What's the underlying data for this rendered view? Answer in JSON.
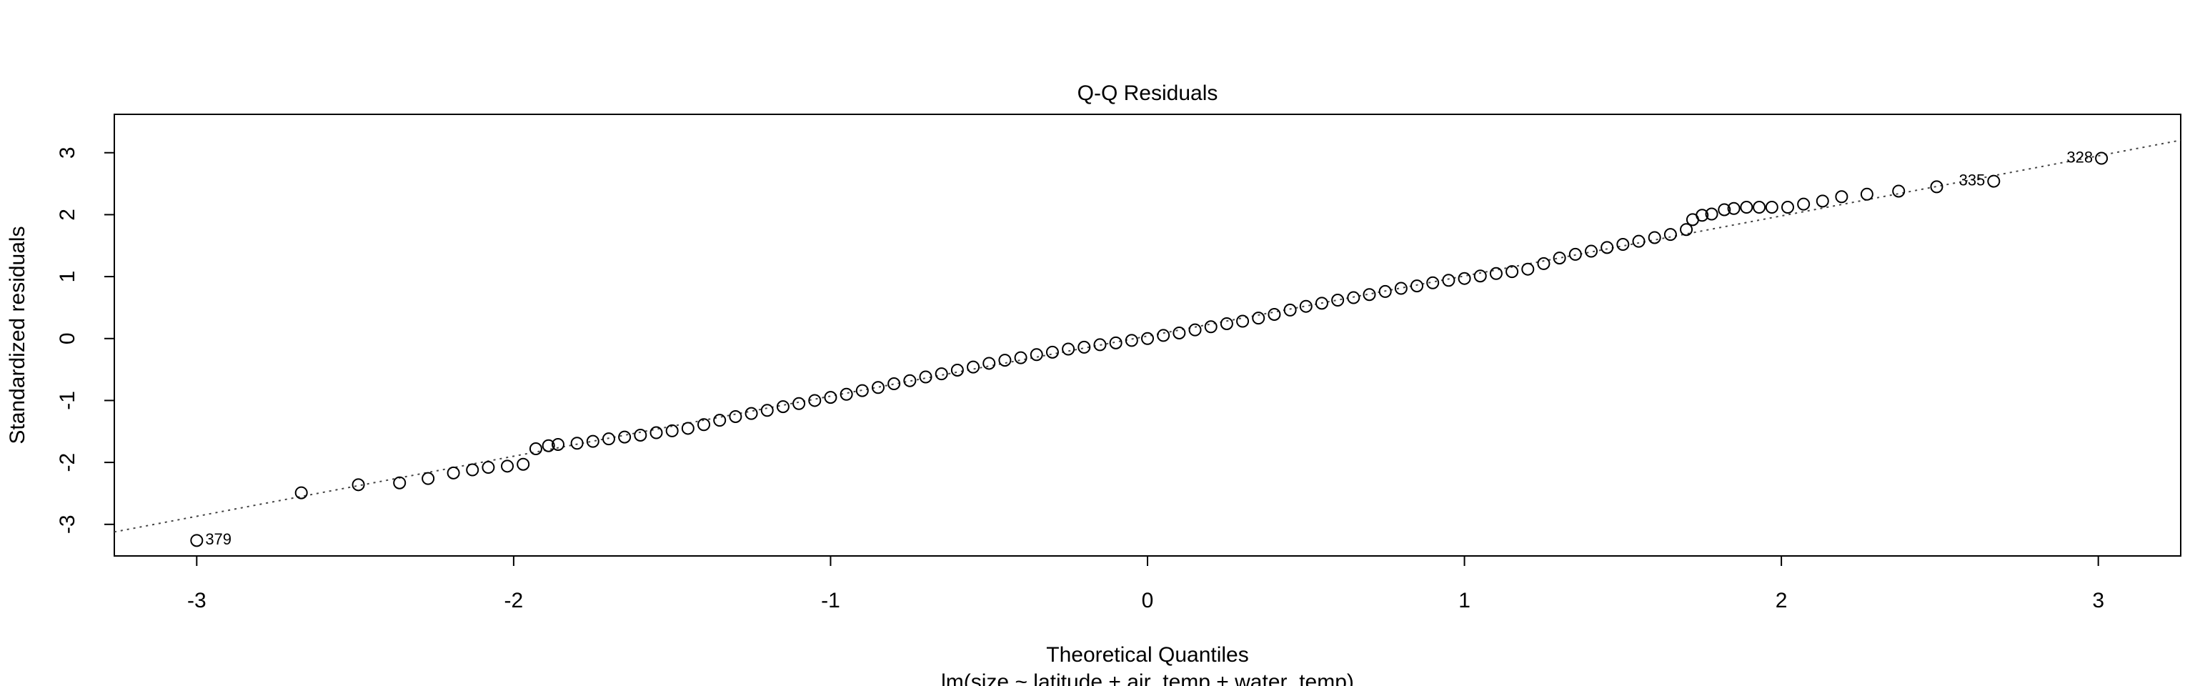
{
  "chart_data": {
    "type": "scatter",
    "title": "Q-Q Residuals",
    "x_label": "Theoretical Quantiles",
    "subtitle": "lm(size ~ latitude + air_temp + water_temp)",
    "y_label": "Standardized residuals",
    "x": [
      -3.0,
      -2.67,
      -2.49,
      -2.36,
      -2.27,
      -2.19,
      -2.13,
      -2.08,
      -2.02,
      -1.97,
      -1.93,
      -1.89,
      -1.86,
      -1.8,
      -1.75,
      -1.7,
      -1.65,
      -1.6,
      -1.55,
      -1.5,
      -1.45,
      -1.4,
      -1.35,
      -1.3,
      -1.25,
      -1.2,
      -1.15,
      -1.1,
      -1.05,
      -1.0,
      -0.95,
      -0.9,
      -0.85,
      -0.8,
      -0.75,
      -0.7,
      -0.65,
      -0.6,
      -0.55,
      -0.5,
      -0.45,
      -0.4,
      -0.35,
      -0.3,
      -0.25,
      -0.2,
      -0.15,
      -0.1,
      -0.05,
      0.0,
      0.05,
      0.1,
      0.15,
      0.2,
      0.25,
      0.3,
      0.35,
      0.4,
      0.45,
      0.5,
      0.55,
      0.6,
      0.65,
      0.7,
      0.75,
      0.8,
      0.85,
      0.9,
      0.95,
      1.0,
      1.05,
      1.1,
      1.15,
      1.2,
      1.25,
      1.3,
      1.35,
      1.4,
      1.45,
      1.5,
      1.55,
      1.6,
      1.65,
      1.7,
      1.72,
      1.75,
      1.78,
      1.82,
      1.85,
      1.89,
      1.93,
      1.97,
      2.02,
      2.07,
      2.13,
      2.19,
      2.27,
      2.37,
      2.49,
      2.67,
      3.01
    ],
    "values": [
      -3.26,
      -2.49,
      -2.36,
      -2.33,
      -2.26,
      -2.17,
      -2.12,
      -2.08,
      -2.06,
      -2.03,
      -1.78,
      -1.73,
      -1.71,
      -1.69,
      -1.66,
      -1.62,
      -1.59,
      -1.56,
      -1.52,
      -1.49,
      -1.45,
      -1.39,
      -1.32,
      -1.26,
      -1.21,
      -1.16,
      -1.1,
      -1.05,
      -1.0,
      -0.95,
      -0.9,
      -0.84,
      -0.79,
      -0.73,
      -0.68,
      -0.62,
      -0.57,
      -0.51,
      -0.46,
      -0.4,
      -0.35,
      -0.31,
      -0.26,
      -0.22,
      -0.17,
      -0.14,
      -0.1,
      -0.07,
      -0.03,
      0.0,
      0.05,
      0.09,
      0.14,
      0.19,
      0.24,
      0.28,
      0.33,
      0.39,
      0.46,
      0.52,
      0.57,
      0.62,
      0.66,
      0.71,
      0.76,
      0.81,
      0.85,
      0.9,
      0.94,
      0.97,
      1.01,
      1.05,
      1.08,
      1.12,
      1.21,
      1.3,
      1.36,
      1.41,
      1.47,
      1.52,
      1.57,
      1.63,
      1.68,
      1.76,
      1.92,
      1.99,
      2.01,
      2.08,
      2.1,
      2.12,
      2.12,
      2.12,
      2.12,
      2.17,
      2.22,
      2.29,
      2.33,
      2.38,
      2.45,
      2.54,
      2.91
    ],
    "point_labels": [
      "379",
      null,
      null,
      null,
      null,
      null,
      null,
      null,
      null,
      null,
      null,
      null,
      null,
      null,
      null,
      null,
      null,
      null,
      null,
      null,
      null,
      null,
      null,
      null,
      null,
      null,
      null,
      null,
      null,
      null,
      null,
      null,
      null,
      null,
      null,
      null,
      null,
      null,
      null,
      null,
      null,
      null,
      null,
      null,
      null,
      null,
      null,
      null,
      null,
      null,
      null,
      null,
      null,
      null,
      null,
      null,
      null,
      null,
      null,
      null,
      null,
      null,
      null,
      null,
      null,
      null,
      null,
      null,
      null,
      null,
      null,
      null,
      null,
      null,
      null,
      null,
      null,
      null,
      null,
      null,
      null,
      null,
      null,
      null,
      null,
      null,
      null,
      null,
      null,
      null,
      null,
      null,
      null,
      null,
      null,
      null,
      null,
      null,
      null,
      "335",
      "328"
    ],
    "reference_line": {
      "intercept": 0.04,
      "slope": 0.97
    },
    "color": "#000000",
    "xlim": [
      -3.26,
      3.26
    ],
    "xticks": [
      -3,
      -2,
      -1,
      0,
      1,
      2,
      3
    ],
    "ylim": [
      -3.51,
      3.62
    ],
    "yticks": [
      -3,
      -2,
      -1,
      0,
      1,
      2,
      3
    ]
  }
}
